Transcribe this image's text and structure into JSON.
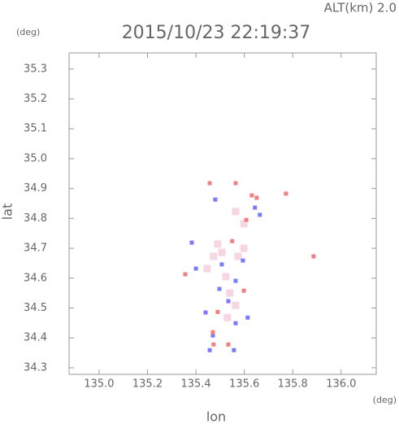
{
  "chart_data": {
    "type": "scatter",
    "title": "2015/10/23 22:19:37",
    "subtitle": "ALT(km) 2.0",
    "y_unit": "(deg)",
    "x_unit": "(deg)",
    "x_label": "lon",
    "y_label": "lat",
    "xlim": [
      134.876,
      136.145
    ],
    "ylim": [
      34.278,
      35.354
    ],
    "xticks": [
      {
        "value": 135,
        "label": "135.0"
      },
      135.2,
      135.4,
      135.6,
      135.8,
      {
        "value": 136,
        "label": "136.0"
      }
    ],
    "yticks": [
      34.3,
      34.4,
      34.5,
      34.6,
      34.7,
      34.8,
      34.9,
      {
        "value": 35,
        "label": "35.0"
      },
      35.1,
      35.2,
      35.3
    ],
    "series": [
      {
        "color": "#f6d6e2",
        "size": 9,
        "x": [
          135.507,
          135.473,
          135.574,
          135.524,
          135.54,
          135.49,
          135.598,
          135.564,
          135.598,
          135.53,
          135.564,
          135.446
        ],
        "values": [
          34.686,
          34.673,
          34.673,
          34.605,
          34.55,
          34.714,
          34.7,
          34.823,
          34.782,
          34.468,
          34.509,
          34.632
        ]
      },
      {
        "color": "#7a7aff",
        "size": 5,
        "x": [
          135.457,
          135.557,
          135.564,
          135.614,
          135.44,
          135.534,
          135.507,
          135.594,
          135.4,
          135.48,
          135.644,
          135.383,
          135.664,
          135.564,
          135.497,
          135.47
        ],
        "values": [
          34.359,
          34.359,
          34.449,
          34.468,
          34.485,
          34.523,
          34.646,
          34.659,
          34.632,
          34.863,
          34.836,
          34.719,
          34.812,
          34.591,
          34.564,
          34.408
        ]
      },
      {
        "color": "#f08080",
        "size": 5,
        "x": [
          135.534,
          135.473,
          135.47,
          135.598,
          135.49,
          135.631,
          135.651,
          135.55,
          135.886,
          135.772,
          135.608,
          135.356,
          135.564,
          135.457
        ],
        "values": [
          34.378,
          34.378,
          34.419,
          34.558,
          34.487,
          34.877,
          34.869,
          34.724,
          34.673,
          34.883,
          34.795,
          34.613,
          34.918,
          34.918
        ]
      }
    ]
  }
}
